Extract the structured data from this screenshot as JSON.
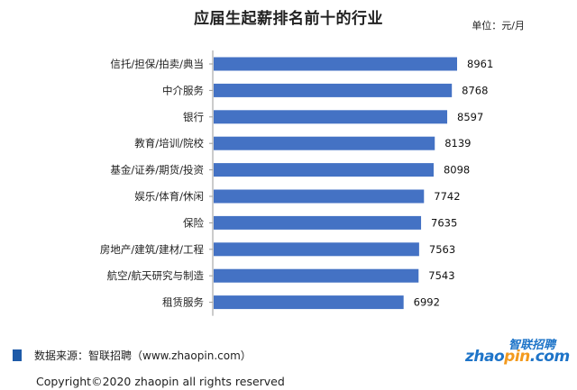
{
  "header": {
    "title": "应届生起薪排名前十的行业",
    "unit": "单位：元/月"
  },
  "footer": {
    "source": "数据来源：智联招聘（www.zhaopin.com）",
    "copyright": "Copyright©2020  zhaopin all rights reserved"
  },
  "logo": {
    "top": "智联招聘",
    "bottom_a": "zhao",
    "bottom_b": "pin",
    "bottom_c": ".com"
  },
  "colors": {
    "bar": "#4472c4",
    "source_mark": "#1e5aa8",
    "logo_blue": "#1e74c8",
    "logo_orange": "#f39a1e"
  },
  "chart_data": {
    "type": "bar",
    "orientation": "horizontal",
    "title": "应届生起薪排名前十的行业",
    "unit": "单位：元/月",
    "categories": [
      "信托/担保/拍卖/典当",
      "中介服务",
      "银行",
      "教育/培训/院校",
      "基金/证券/期货/投资",
      "娱乐/体育/休闲",
      "保险",
      "房地产/建筑/建材/工程",
      "航空/航天研究与制造",
      "租赁服务"
    ],
    "values": [
      8961,
      8768,
      8597,
      8139,
      8098,
      7742,
      7635,
      7563,
      7543,
      6992
    ],
    "data_labels": true,
    "grid": false,
    "legend": "none"
  }
}
